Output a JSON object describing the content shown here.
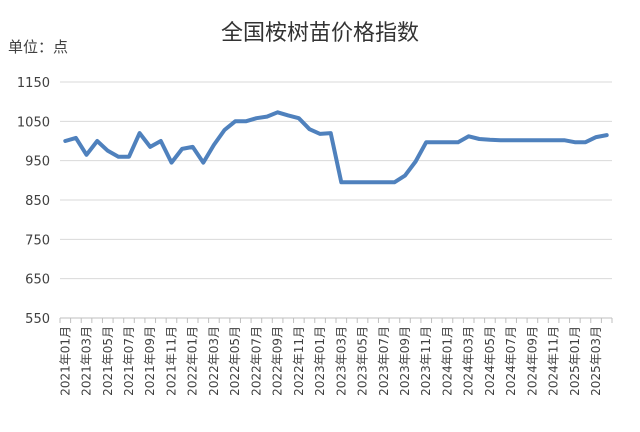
{
  "chart_data": {
    "type": "line",
    "title": "全国桉树苗价格指数",
    "unit_label": "单位：点",
    "ylim": [
      550,
      1150
    ],
    "yticks": [
      550,
      650,
      750,
      850,
      950,
      1050,
      1150
    ],
    "grid": "horizontal",
    "legend": "none",
    "line_color": "#4f81bd",
    "x": [
      "2021年01月",
      "2021年02月",
      "2021年03月",
      "2021年04月",
      "2021年05月",
      "2021年06月",
      "2021年07月",
      "2021年08月",
      "2021年09月",
      "2021年10月",
      "2021年11月",
      "2021年12月",
      "2022年01月",
      "2022年02月",
      "2022年03月",
      "2022年04月",
      "2022年05月",
      "2022年06月",
      "2022年07月",
      "2022年08月",
      "2022年09月",
      "2022年10月",
      "2022年11月",
      "2022年12月",
      "2023年01月",
      "2023年02月",
      "2023年03月",
      "2023年04月",
      "2023年05月",
      "2023年06月",
      "2023年07月",
      "2023年08月",
      "2023年09月",
      "2023年10月",
      "2023年11月",
      "2023年12月",
      "2024年01月",
      "2024年02月",
      "2024年03月",
      "2024年04月",
      "2024年05月",
      "2024年06月",
      "2024年07月",
      "2024年08月",
      "2024年09月",
      "2024年10月",
      "2024年11月",
      "2024年12月",
      "2025年01月",
      "2025年02月",
      "2025年03月",
      "2025年04月"
    ],
    "xticks_shown": [
      "2021年01月",
      "2021年03月",
      "2021年05月",
      "2021年07月",
      "2021年09月",
      "2021年11月",
      "2022年01月",
      "2022年03月",
      "2022年05月",
      "2022年07月",
      "2022年09月",
      "2022年11月",
      "2023年01月",
      "2023年03月",
      "2023年05月",
      "2023年07月",
      "2023年09月",
      "2023年11月",
      "2024年01月",
      "2024年03月",
      "2024年05月",
      "2024年07月",
      "2024年09月",
      "2024年11月",
      "2025年01月",
      "2025年03月"
    ],
    "values": [
      1000,
      1008,
      965,
      1000,
      975,
      960,
      960,
      1020,
      985,
      1000,
      945,
      980,
      985,
      945,
      990,
      1028,
      1050,
      1050,
      1058,
      1062,
      1073,
      1065,
      1058,
      1030,
      1018,
      1020,
      895,
      895,
      895,
      895,
      895,
      895,
      912,
      948,
      997,
      997,
      997,
      997,
      1012,
      1005,
      1003,
      1002,
      1002,
      1002,
      1002,
      1002,
      1002,
      1002,
      997,
      997,
      1010,
      1015
    ]
  }
}
